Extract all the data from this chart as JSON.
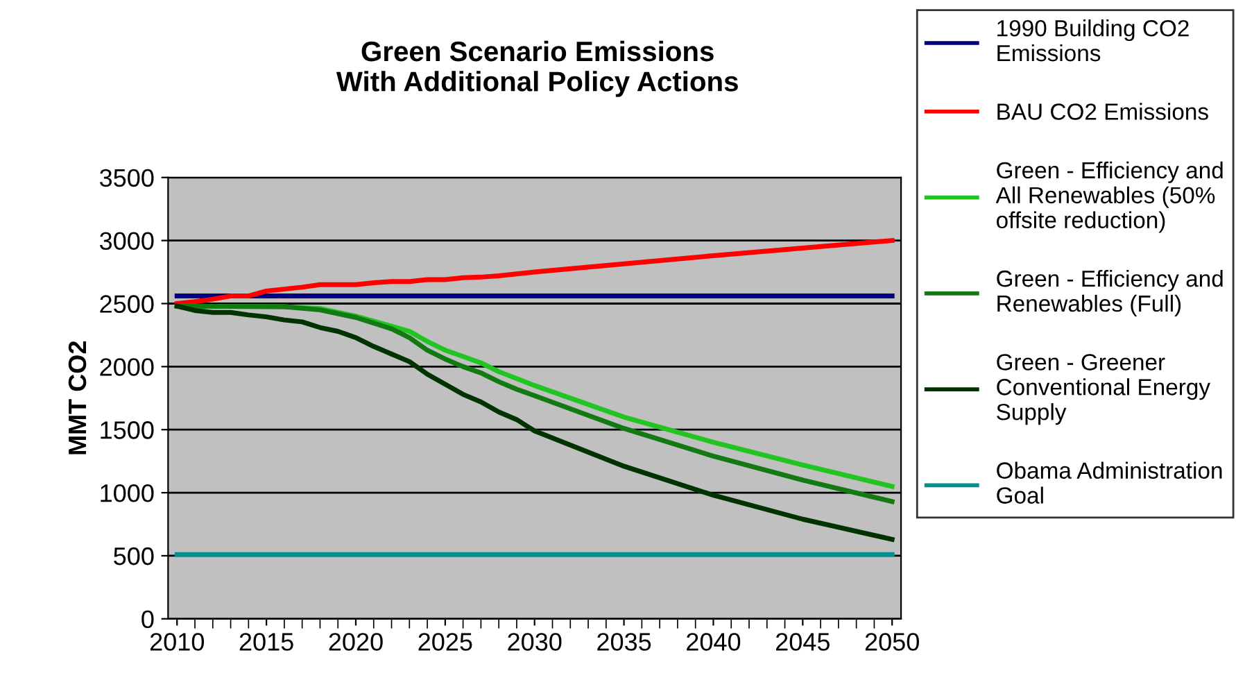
{
  "chart_data": {
    "type": "line",
    "title": "Green Scenario Emissions\nWith Additional Policy Actions",
    "ylabel": "MMT CO2",
    "xlim": [
      2009.5,
      2050.5
    ],
    "xticks": [
      2010,
      2015,
      2020,
      2025,
      2030,
      2035,
      2040,
      2045,
      2050
    ],
    "ylim": [
      0,
      3500
    ],
    "yticks": [
      0,
      500,
      1000,
      1500,
      2000,
      2500,
      3000,
      3500
    ],
    "grid": "y",
    "legend": "right",
    "marker": "none",
    "line_style": "solid",
    "series": [
      {
        "name": "1990 Building CO2 Emissions",
        "color": "#000080",
        "x": [
          2010,
          2050
        ],
        "values": [
          2560,
          2560
        ]
      },
      {
        "name": "BAU CO2 Emissions",
        "color": "#ff0000",
        "x": [
          2010,
          2011,
          2012,
          2013,
          2014,
          2015,
          2016,
          2017,
          2018,
          2019,
          2020,
          2021,
          2022,
          2023,
          2024,
          2025,
          2026,
          2027,
          2028,
          2029,
          2030,
          2035,
          2040,
          2045,
          2050
        ],
        "values": [
          2500,
          2515,
          2535,
          2560,
          2560,
          2600,
          2615,
          2630,
          2650,
          2650,
          2650,
          2665,
          2675,
          2675,
          2690,
          2690,
          2705,
          2710,
          2720,
          2735,
          2750,
          2815,
          2880,
          2940,
          3000
        ]
      },
      {
        "name": "Green - Efficiency and All Renewables (50% offsite reduction)",
        "color": "#22c422",
        "x": [
          2010,
          2016,
          2018,
          2020,
          2022,
          2023,
          2024,
          2025,
          2026,
          2027,
          2028,
          2030,
          2035,
          2040,
          2045,
          2050
        ],
        "values": [
          2480,
          2475,
          2460,
          2400,
          2320,
          2280,
          2200,
          2130,
          2080,
          2030,
          1960,
          1850,
          1600,
          1400,
          1220,
          1050
        ]
      },
      {
        "name": "Green - Efficiency and Renewables (Full)",
        "color": "#137a13",
        "x": [
          2010,
          2016,
          2018,
          2020,
          2022,
          2023,
          2024,
          2025,
          2026,
          2027,
          2028,
          2029,
          2030,
          2035,
          2040,
          2045,
          2050
        ],
        "values": [
          2480,
          2475,
          2450,
          2390,
          2300,
          2230,
          2130,
          2060,
          2000,
          1950,
          1880,
          1820,
          1770,
          1510,
          1290,
          1100,
          930
        ]
      },
      {
        "name": "Green - Greener Conventional Energy Supply",
        "color": "#003300",
        "x": [
          2010,
          2011,
          2012,
          2013,
          2014,
          2015,
          2016,
          2017,
          2018,
          2019,
          2020,
          2021,
          2022,
          2023,
          2024,
          2025,
          2026,
          2027,
          2028,
          2029,
          2030,
          2035,
          2040,
          2045,
          2050
        ],
        "values": [
          2480,
          2445,
          2430,
          2430,
          2410,
          2395,
          2370,
          2355,
          2310,
          2280,
          2230,
          2160,
          2100,
          2040,
          1940,
          1860,
          1780,
          1720,
          1640,
          1580,
          1490,
          1210,
          980,
          790,
          630
        ]
      },
      {
        "name": "Obama Administration Goal",
        "color": "#009090",
        "x": [
          2010,
          2050
        ],
        "values": [
          510,
          510
        ]
      }
    ]
  }
}
